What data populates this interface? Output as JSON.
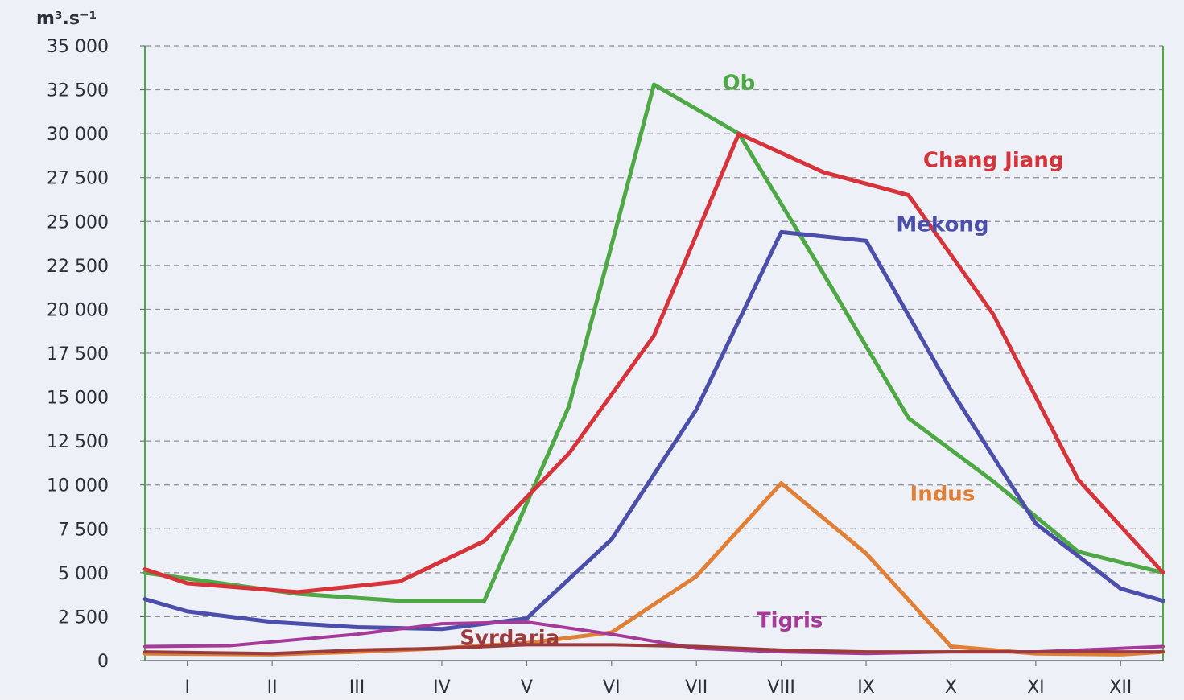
{
  "chart_data": {
    "type": "line",
    "ylabel": "m³.s⁻¹",
    "ylim": [
      0,
      35000
    ],
    "yticks": [
      0,
      2500,
      5000,
      7500,
      10000,
      12500,
      15000,
      17500,
      20000,
      22500,
      25000,
      27500,
      30000,
      32500,
      35000
    ],
    "ytick_labels": [
      "0",
      "2 500",
      "5 000",
      "7 500",
      "10 000",
      "12 500",
      "15 000",
      "17 500",
      "20 000",
      "22 500",
      "25 000",
      "27 500",
      "30 000",
      "32 500",
      "35 000"
    ],
    "categories": [
      "I",
      "II",
      "III",
      "IV",
      "V",
      "VI",
      "VII",
      "VIII",
      "IX",
      "X",
      "XI",
      "XII"
    ],
    "grid": true,
    "series": [
      {
        "name": "Ob",
        "color": "#4ea845",
        "x": [
          0.5,
          2.3,
          3.5,
          4.5,
          5.5,
          6.5,
          7.5,
          8.5,
          9.5,
          10.5,
          11.5,
          12.5
        ],
        "values": [
          5000,
          3800,
          3400,
          3400,
          14500,
          32800,
          30000,
          22000,
          13800,
          10200,
          6200,
          5000
        ]
      },
      {
        "name": "Chang Jiang",
        "color": "#d6333a",
        "x": [
          0.5,
          1,
          2.3,
          3.5,
          4.5,
          5.5,
          6.5,
          7.5,
          8.5,
          9.5,
          10.5,
          11.5,
          12.5
        ],
        "values": [
          5200,
          4400,
          3900,
          4500,
          6800,
          11800,
          18500,
          30000,
          27800,
          26500,
          19700,
          10300,
          5000
        ]
      },
      {
        "name": "Mekong",
        "color": "#4b4faa",
        "x": [
          0.5,
          1,
          2,
          3,
          4,
          5,
          6,
          7,
          8,
          9,
          10,
          11,
          12,
          12.5
        ],
        "values": [
          3500,
          2800,
          2200,
          1900,
          1800,
          2400,
          6900,
          14300,
          24400,
          23900,
          15400,
          7800,
          4100,
          3400
        ]
      },
      {
        "name": "Indus",
        "color": "#e07f36",
        "x": [
          0.5,
          2,
          3,
          4,
          5,
          6,
          7,
          8,
          9,
          10,
          11,
          12,
          12.5
        ],
        "values": [
          400,
          350,
          500,
          700,
          1000,
          1600,
          4800,
          10100,
          6100,
          800,
          400,
          350,
          500
        ]
      },
      {
        "name": "Tigris",
        "color": "#a63a9a",
        "x": [
          0.5,
          1.5,
          3,
          4,
          5,
          6,
          7,
          8,
          9,
          10,
          11,
          12,
          12.5
        ],
        "values": [
          800,
          850,
          1500,
          2100,
          2200,
          1500,
          700,
          500,
          400,
          500,
          500,
          700,
          800
        ]
      },
      {
        "name": "Syrdaria",
        "color": "#9c3b3d",
        "x": [
          0.5,
          2,
          3,
          4,
          5,
          6,
          7,
          8,
          9,
          10,
          11,
          12,
          12.5
        ],
        "values": [
          500,
          400,
          600,
          700,
          900,
          900,
          800,
          600,
          500,
          500,
          500,
          500,
          500
        ]
      }
    ]
  }
}
